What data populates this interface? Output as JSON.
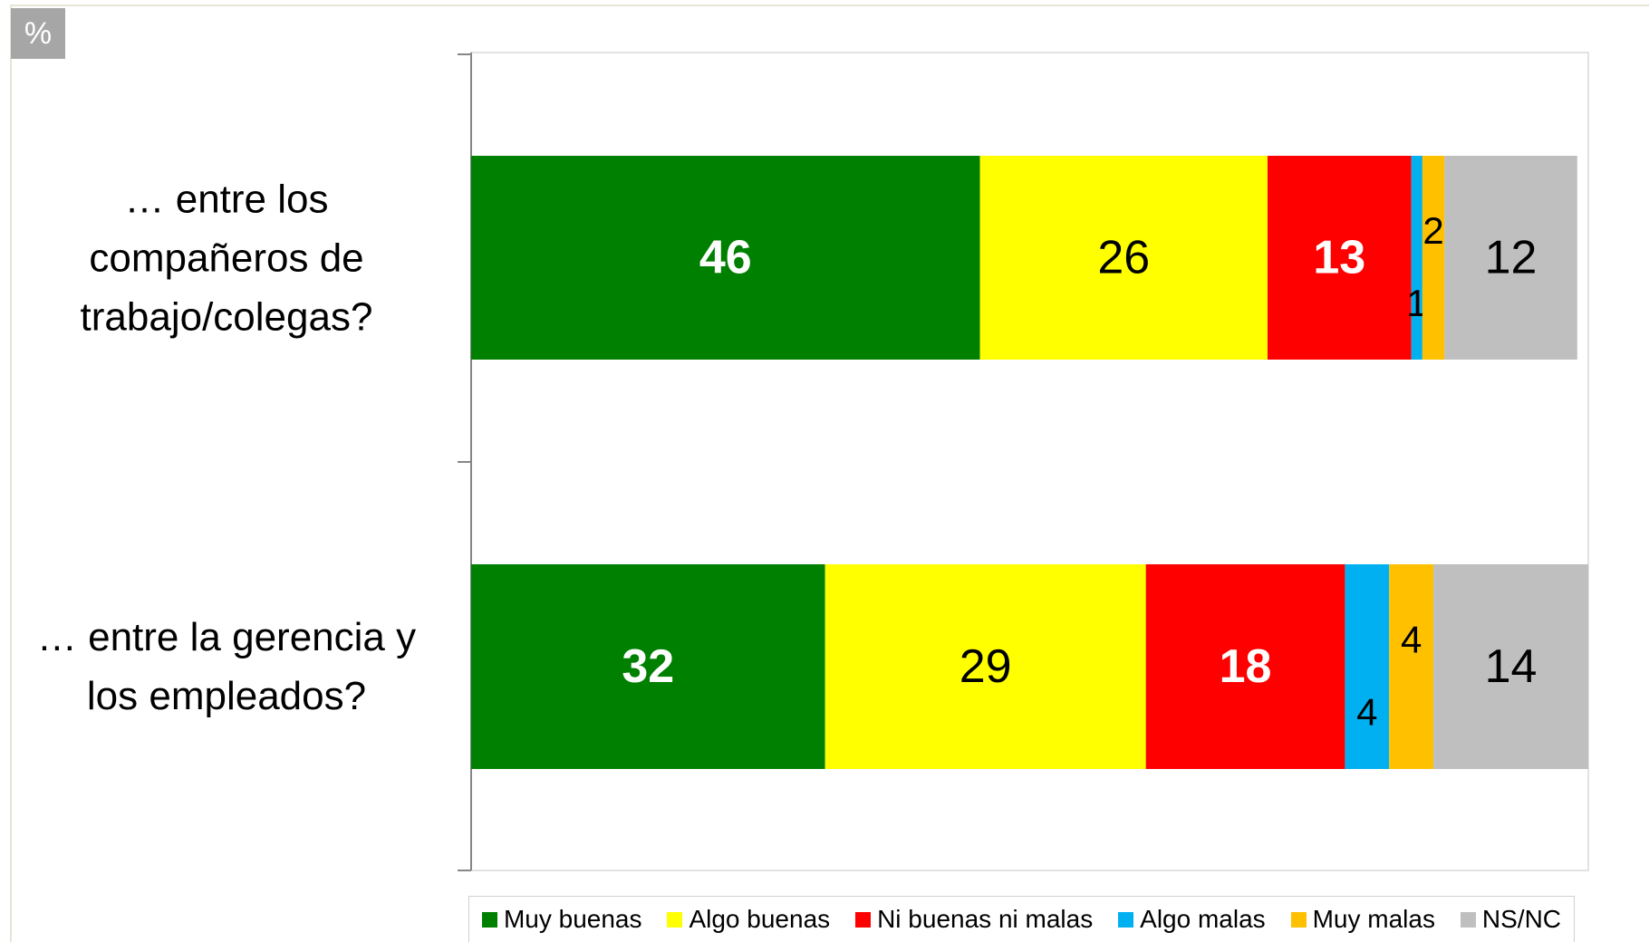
{
  "unit_label": "%",
  "chart_data": {
    "type": "stacked-bar-horizontal",
    "categories": [
      "… entre los compañeros de trabajo/colegas?",
      "… entre la gerencia y los empleados?"
    ],
    "series": [
      {
        "name": "Muy buenas",
        "color": "#008000",
        "values": [
          46,
          32
        ]
      },
      {
        "name": "Algo buenas",
        "color": "#ffff00",
        "values": [
          26,
          29
        ]
      },
      {
        "name": "Ni buenas ni malas",
        "color": "#ff0000",
        "values": [
          13,
          18
        ]
      },
      {
        "name": "Algo malas",
        "color": "#00b0f0",
        "values": [
          1,
          4
        ]
      },
      {
        "name": "Muy malas",
        "color": "#ffc000",
        "values": [
          2,
          4
        ]
      },
      {
        "name": "NS/NC",
        "color": "#bfbfbf",
        "values": [
          12,
          14
        ]
      }
    ],
    "xlim": [
      0,
      101
    ],
    "legend": "bottom"
  }
}
